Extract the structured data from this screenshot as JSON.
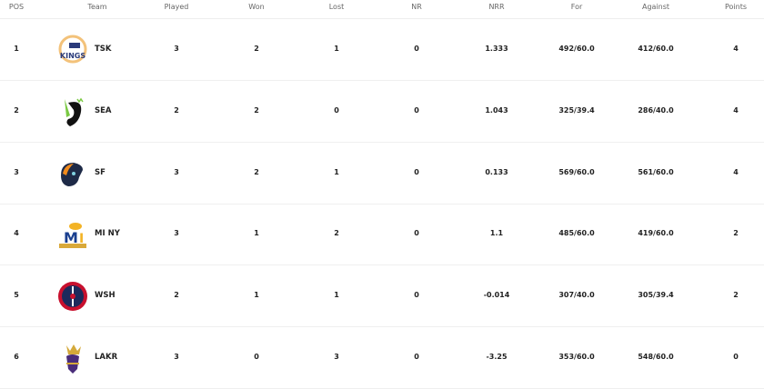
{
  "columns": [
    "POS",
    "Team",
    "Played",
    "Won",
    "Lost",
    "NR",
    "NRR",
    "For",
    "Against",
    "Points"
  ],
  "rows": [
    {
      "pos": "1",
      "team": "TSK",
      "logo": "texas-super-kings-logo",
      "played": "3",
      "won": "2",
      "lost": "1",
      "nr": "0",
      "nrr": "1.333",
      "for": "492/60.0",
      "against": "412/60.0",
      "points": "4"
    },
    {
      "pos": "2",
      "team": "SEA",
      "logo": "seattle-orcas-logo",
      "played": "2",
      "won": "2",
      "lost": "0",
      "nr": "0",
      "nrr": "1.043",
      "for": "325/39.4",
      "against": "286/40.0",
      "points": "4"
    },
    {
      "pos": "3",
      "team": "SF",
      "logo": "san-francisco-unicorns-logo",
      "played": "3",
      "won": "2",
      "lost": "1",
      "nr": "0",
      "nrr": "0.133",
      "for": "569/60.0",
      "against": "561/60.0",
      "points": "4"
    },
    {
      "pos": "4",
      "team": "MI NY",
      "logo": "mi-new-york-logo",
      "played": "3",
      "won": "1",
      "lost": "2",
      "nr": "0",
      "nrr": "1.1",
      "for": "485/60.0",
      "against": "419/60.0",
      "points": "2"
    },
    {
      "pos": "5",
      "team": "WSH",
      "logo": "washington-freedom-logo",
      "played": "2",
      "won": "1",
      "lost": "1",
      "nr": "0",
      "nrr": "-0.014",
      "for": "307/40.0",
      "against": "305/39.4",
      "points": "2"
    },
    {
      "pos": "6",
      "team": "LAKR",
      "logo": "los-angeles-knight-riders-logo",
      "played": "3",
      "won": "0",
      "lost": "3",
      "nr": "0",
      "nrr": "-3.25",
      "for": "353/60.0",
      "against": "548/60.0",
      "points": "0"
    }
  ]
}
